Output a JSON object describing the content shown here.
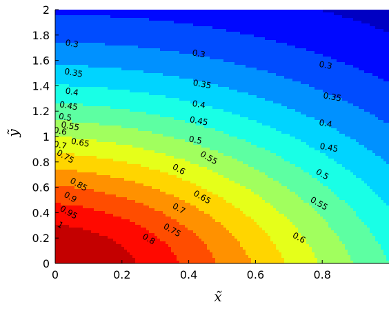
{
  "chart_data": {
    "type": "contour",
    "xlabel": "x̃",
    "ylabel": "ỹ",
    "xlim": [
      0,
      1
    ],
    "ylim": [
      0,
      2
    ],
    "x_ticks": [
      {
        "v": 0,
        "label": "0"
      },
      {
        "v": 0.2,
        "label": "0.2"
      },
      {
        "v": 0.4,
        "label": "0.4"
      },
      {
        "v": 0.6,
        "label": "0.6"
      },
      {
        "v": 0.8,
        "label": "0.8"
      }
    ],
    "y_ticks": [
      {
        "v": 0,
        "label": "0"
      },
      {
        "v": 0.2,
        "label": "0.2"
      },
      {
        "v": 0.4,
        "label": "0.4"
      },
      {
        "v": 0.6,
        "label": "0.6"
      },
      {
        "v": 0.8,
        "label": "0.8"
      },
      {
        "v": 1,
        "label": "1"
      },
      {
        "v": 1.2,
        "label": "1.2"
      },
      {
        "v": 1.4,
        "label": "1.4"
      },
      {
        "v": 1.6,
        "label": "1.6"
      },
      {
        "v": 1.8,
        "label": "1.8"
      },
      {
        "v": 2,
        "label": "2"
      }
    ],
    "colormap": "jet",
    "levels": [
      0.3,
      0.35,
      0.4,
      0.45,
      0.5,
      0.55,
      0.6,
      0.65,
      0.7,
      0.75,
      0.8,
      0.85,
      0.9,
      0.95,
      1
    ],
    "contour_labels": [
      {
        "text": "0.3",
        "x": 0.05,
        "y": 1.73
      },
      {
        "text": "0.35",
        "x": 0.055,
        "y": 1.5
      },
      {
        "text": "0.4",
        "x": 0.05,
        "y": 1.35
      },
      {
        "text": "0.45",
        "x": 0.04,
        "y": 1.24
      },
      {
        "text": "0.5",
        "x": 0.03,
        "y": 1.15
      },
      {
        "text": "0.55",
        "x": 0.045,
        "y": 1.08
      },
      {
        "text": "0.6",
        "x": 0.015,
        "y": 1.04
      },
      {
        "text": "0.65",
        "x": 0.075,
        "y": 0.95
      },
      {
        "text": "0.7",
        "x": 0.015,
        "y": 0.93
      },
      {
        "text": "0.75",
        "x": 0.03,
        "y": 0.84
      },
      {
        "text": "0.85",
        "x": 0.07,
        "y": 0.62
      },
      {
        "text": "0.9",
        "x": 0.045,
        "y": 0.52
      },
      {
        "text": "0.95",
        "x": 0.04,
        "y": 0.4
      },
      {
        "text": "1",
        "x": 0.015,
        "y": 0.3
      },
      {
        "text": "0.3",
        "x": 0.43,
        "y": 1.65
      },
      {
        "text": "0.35",
        "x": 0.44,
        "y": 1.41
      },
      {
        "text": "0.4",
        "x": 0.43,
        "y": 1.25
      },
      {
        "text": "0.45",
        "x": 0.43,
        "y": 1.12
      },
      {
        "text": "0.5",
        "x": 0.42,
        "y": 0.97
      },
      {
        "text": "0.55",
        "x": 0.46,
        "y": 0.83
      },
      {
        "text": "0.6",
        "x": 0.37,
        "y": 0.74
      },
      {
        "text": "0.65",
        "x": 0.44,
        "y": 0.52
      },
      {
        "text": "0.7",
        "x": 0.37,
        "y": 0.43
      },
      {
        "text": "0.75",
        "x": 0.35,
        "y": 0.26
      },
      {
        "text": "0.8",
        "x": 0.28,
        "y": 0.19
      },
      {
        "text": "0.6",
        "x": 0.73,
        "y": 0.2
      },
      {
        "text": "0.3",
        "x": 0.81,
        "y": 1.56
      },
      {
        "text": "0.35",
        "x": 0.83,
        "y": 1.31
      },
      {
        "text": "0.4",
        "x": 0.81,
        "y": 1.1
      },
      {
        "text": "0.45",
        "x": 0.82,
        "y": 0.91
      },
      {
        "text": "0.5",
        "x": 0.8,
        "y": 0.7
      },
      {
        "text": "0.55",
        "x": 0.79,
        "y": 0.47
      }
    ]
  }
}
